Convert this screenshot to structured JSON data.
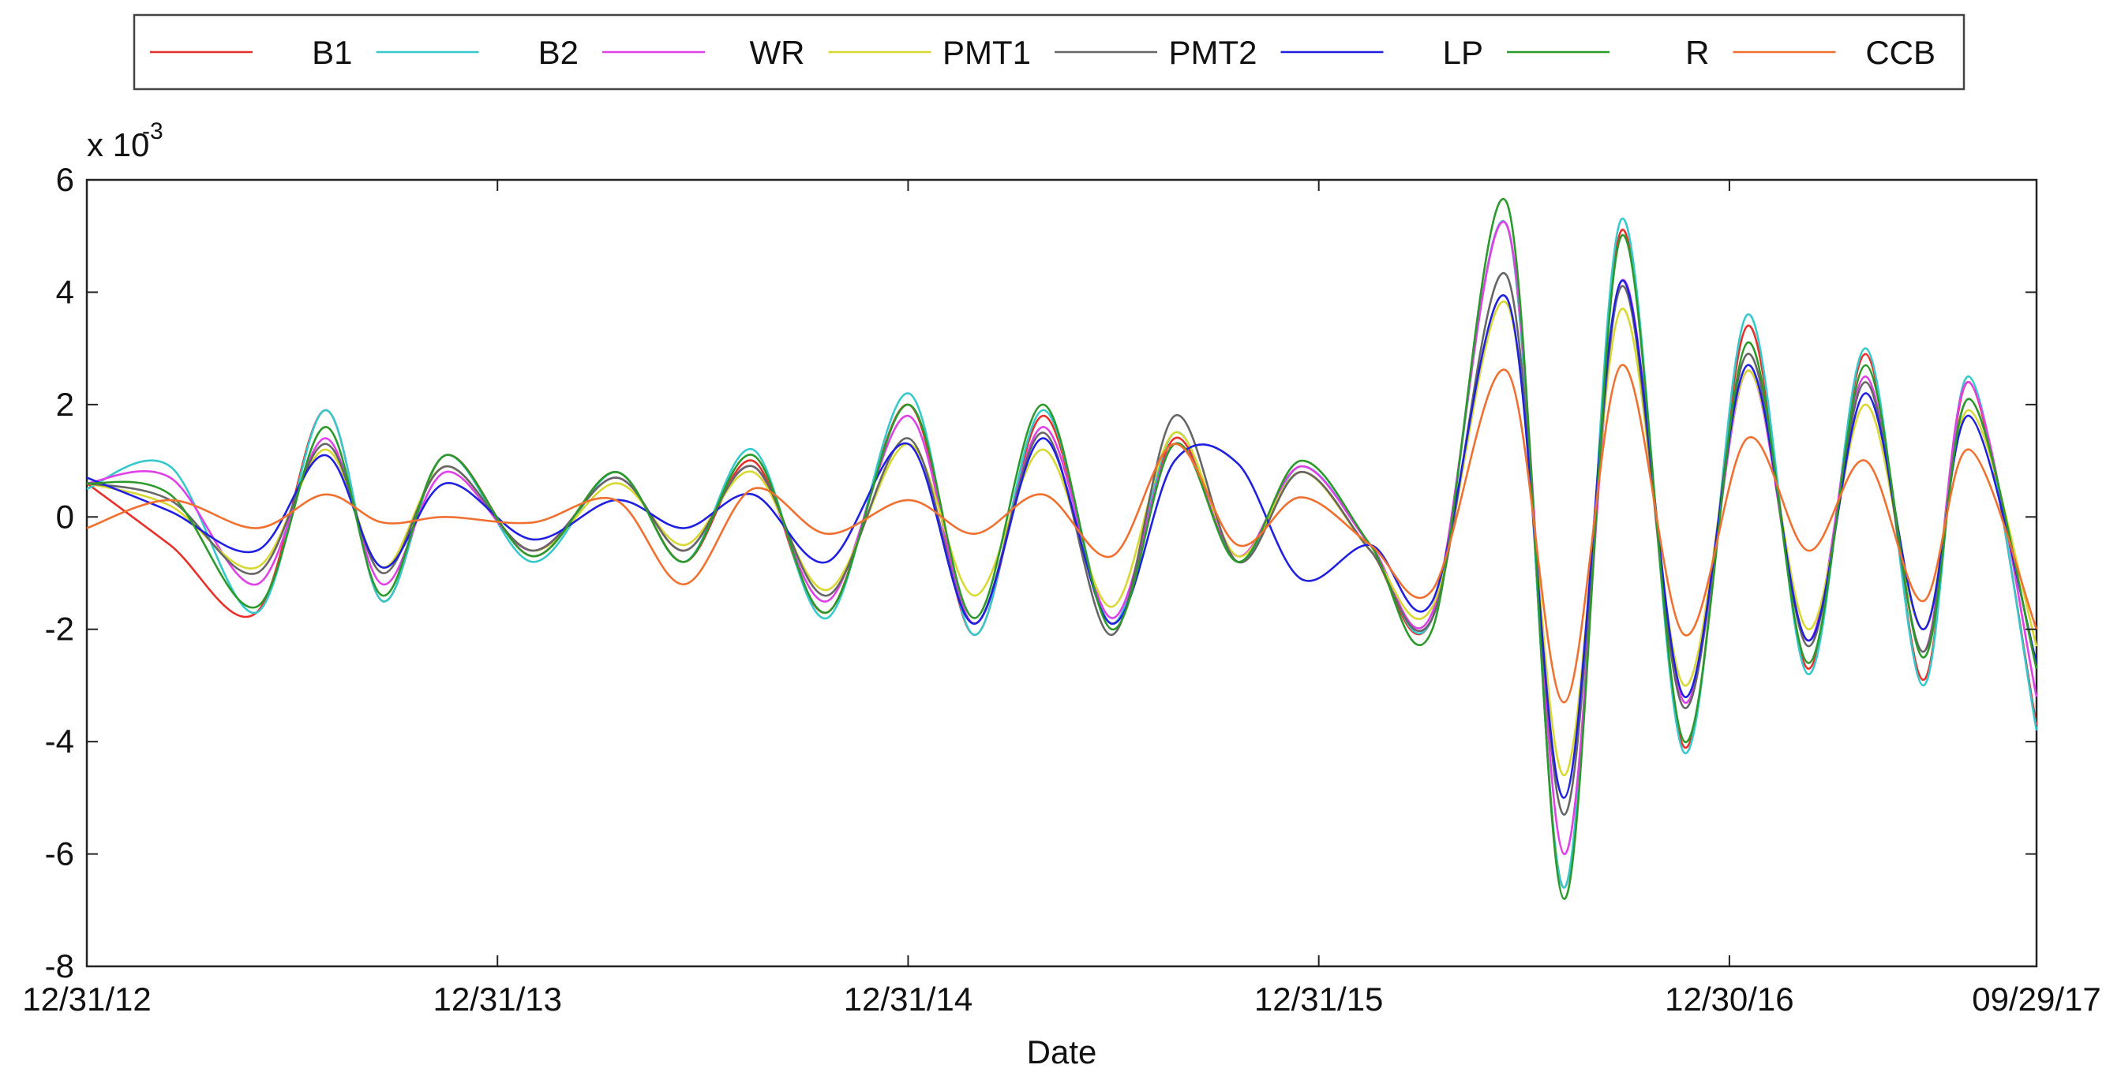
{
  "chart_data": {
    "type": "line",
    "xlabel": "Date",
    "ylabel": "",
    "y_exponent_label": "x 10",
    "y_exponent_power": "-3",
    "x_tick_labels": [
      "12/31/12",
      "12/31/13",
      "12/31/14",
      "12/31/15",
      "12/30/16",
      "09/29/17"
    ],
    "x_ticks": [
      "2012-12-31",
      "2013-12-31",
      "2014-12-31",
      "2015-12-31",
      "2016-12-30",
      "2017-09-29"
    ],
    "xlim": [
      "2012-12-31",
      "2017-09-29"
    ],
    "y_tick_labels": [
      "-8",
      "-6",
      "-4",
      "-2",
      "0",
      "2",
      "4",
      "6"
    ],
    "y_ticks": [
      -8,
      -6,
      -4,
      -2,
      0,
      2,
      4,
      6
    ],
    "ylim": [
      -8,
      6
    ],
    "grid": false,
    "legend_position": "top",
    "series": [
      {
        "name": "B1",
        "color": "#e8302a",
        "x": [
          "2012-12-31",
          "2013-03-15",
          "2013-05-31",
          "2013-07-31",
          "2013-09-20",
          "2013-11-15",
          "2014-01-31",
          "2014-04-15",
          "2014-06-15",
          "2014-08-15",
          "2014-10-20",
          "2014-12-31",
          "2015-02-28",
          "2015-04-30",
          "2015-06-30",
          "2015-08-25",
          "2015-10-20",
          "2015-12-15",
          "2016-02-15",
          "2016-04-10",
          "2016-06-15",
          "2016-08-05",
          "2016-09-25",
          "2016-11-20",
          "2017-01-15",
          "2017-03-10",
          "2017-04-30",
          "2017-06-20",
          "2017-07-31",
          "2017-09-29"
        ],
        "y": [
          0.6,
          -0.5,
          -1.7,
          1.9,
          -1.5,
          1.1,
          -0.7,
          0.8,
          -0.8,
          1.0,
          -1.7,
          2.0,
          -2.1,
          1.8,
          -1.9,
          1.4,
          -0.8,
          0.8,
          -0.6,
          -1.8,
          5.2,
          -6.6,
          5.1,
          -4.1,
          3.4,
          -2.7,
          2.9,
          -2.9,
          2.4,
          -3.7
        ]
      },
      {
        "name": "B2",
        "color": "#35c8cc",
        "x": [
          "2012-12-31",
          "2013-03-15",
          "2013-05-31",
          "2013-07-31",
          "2013-09-20",
          "2013-11-15",
          "2014-01-31",
          "2014-04-15",
          "2014-06-15",
          "2014-08-15",
          "2014-10-20",
          "2014-12-31",
          "2015-02-28",
          "2015-04-30",
          "2015-06-30",
          "2015-08-25",
          "2015-10-20",
          "2015-12-15",
          "2016-02-15",
          "2016-04-10",
          "2016-06-15",
          "2016-08-05",
          "2016-09-25",
          "2016-11-20",
          "2017-01-15",
          "2017-03-10",
          "2017-04-30",
          "2017-06-20",
          "2017-07-31",
          "2017-09-29"
        ],
        "y": [
          0.5,
          0.9,
          -1.7,
          1.9,
          -1.5,
          1.1,
          -0.8,
          0.8,
          -0.8,
          1.2,
          -1.8,
          2.2,
          -2.1,
          1.9,
          -1.9,
          1.5,
          -0.8,
          0.9,
          -0.5,
          -1.8,
          5.2,
          -6.6,
          5.3,
          -4.2,
          3.6,
          -2.8,
          3.0,
          -3.0,
          2.5,
          -3.8
        ]
      },
      {
        "name": "WR",
        "color": "#e040e8",
        "x": [
          "2012-12-31",
          "2013-03-15",
          "2013-05-31",
          "2013-07-31",
          "2013-09-20",
          "2013-11-15",
          "2014-01-31",
          "2014-04-15",
          "2014-06-15",
          "2014-08-15",
          "2014-10-20",
          "2014-12-31",
          "2015-02-28",
          "2015-04-30",
          "2015-06-30",
          "2015-08-25",
          "2015-10-20",
          "2015-12-15",
          "2016-02-15",
          "2016-04-10",
          "2016-06-15",
          "2016-08-05",
          "2016-09-25",
          "2016-11-20",
          "2017-01-15",
          "2017-03-10",
          "2017-04-30",
          "2017-06-20",
          "2017-07-31",
          "2017-09-29"
        ],
        "y": [
          0.6,
          0.7,
          -1.2,
          1.4,
          -1.2,
          0.8,
          -0.6,
          0.7,
          -0.6,
          0.9,
          -1.5,
          1.8,
          -1.9,
          1.6,
          -1.8,
          1.3,
          -0.7,
          0.9,
          -0.5,
          -1.7,
          5.2,
          -6.0,
          4.2,
          -3.3,
          2.6,
          -2.2,
          2.5,
          -2.4,
          2.4,
          -3.2
        ]
      },
      {
        "name": "PMT1",
        "color": "#d8d830",
        "x": [
          "2012-12-31",
          "2013-03-15",
          "2013-05-31",
          "2013-07-31",
          "2013-09-20",
          "2013-11-15",
          "2014-01-31",
          "2014-04-15",
          "2014-06-15",
          "2014-08-15",
          "2014-10-20",
          "2014-12-31",
          "2015-02-28",
          "2015-04-30",
          "2015-06-30",
          "2015-08-25",
          "2015-10-20",
          "2015-12-15",
          "2016-02-15",
          "2016-04-10",
          "2016-06-15",
          "2016-08-05",
          "2016-09-25",
          "2016-11-20",
          "2017-01-15",
          "2017-03-10",
          "2017-04-30",
          "2017-06-20",
          "2017-07-31",
          "2017-09-29"
        ],
        "y": [
          0.6,
          0.2,
          -0.9,
          1.2,
          -0.9,
          0.9,
          -0.6,
          0.6,
          -0.5,
          0.8,
          -1.3,
          1.3,
          -1.4,
          1.2,
          -1.6,
          1.5,
          -0.7,
          0.8,
          -0.6,
          -1.6,
          3.8,
          -4.6,
          3.7,
          -3.0,
          2.6,
          -2.0,
          2.0,
          -2.0,
          1.9,
          -2.3
        ]
      },
      {
        "name": "PMT2",
        "color": "#666666",
        "x": [
          "2012-12-31",
          "2013-03-15",
          "2013-05-31",
          "2013-07-31",
          "2013-09-20",
          "2013-11-15",
          "2014-01-31",
          "2014-04-15",
          "2014-06-15",
          "2014-08-15",
          "2014-10-20",
          "2014-12-31",
          "2015-02-28",
          "2015-04-30",
          "2015-06-30",
          "2015-08-25",
          "2015-10-20",
          "2015-12-15",
          "2016-02-15",
          "2016-04-10",
          "2016-06-15",
          "2016-08-05",
          "2016-09-25",
          "2016-11-20",
          "2017-01-15",
          "2017-03-10",
          "2017-04-30",
          "2017-06-20",
          "2017-07-31",
          "2017-09-29"
        ],
        "y": [
          0.6,
          0.3,
          -1.0,
          1.3,
          -1.0,
          0.9,
          -0.6,
          0.7,
          -0.6,
          0.9,
          -1.4,
          1.4,
          -1.9,
          1.5,
          -2.1,
          1.8,
          -0.8,
          0.8,
          -0.6,
          -1.8,
          4.3,
          -5.3,
          4.1,
          -3.4,
          2.9,
          -2.3,
          2.4,
          -2.4,
          2.1,
          -2.7
        ]
      },
      {
        "name": "LP",
        "color": "#2020e0",
        "x": [
          "2012-12-31",
          "2013-03-15",
          "2013-05-31",
          "2013-07-31",
          "2013-09-20",
          "2013-11-15",
          "2014-01-31",
          "2014-04-15",
          "2014-06-15",
          "2014-08-15",
          "2014-10-20",
          "2014-12-31",
          "2015-02-28",
          "2015-04-30",
          "2015-06-30",
          "2015-08-25",
          "2015-10-20",
          "2015-12-15",
          "2016-02-15",
          "2016-04-10",
          "2016-06-15",
          "2016-08-05",
          "2016-09-25",
          "2016-11-20",
          "2017-01-15",
          "2017-03-10",
          "2017-04-30",
          "2017-06-20",
          "2017-07-31",
          "2017-09-29"
        ],
        "y": [
          0.7,
          0.1,
          -0.6,
          1.1,
          -0.9,
          0.6,
          -0.4,
          0.3,
          -0.2,
          0.4,
          -0.8,
          1.3,
          -1.9,
          1.4,
          -1.9,
          1.0,
          0.95,
          -1.1,
          -0.5,
          -1.5,
          3.9,
          -5.0,
          4.2,
          -3.2,
          2.7,
          -2.2,
          2.2,
          -2.0,
          1.8,
          -2.6
        ]
      },
      {
        "name": "R",
        "color": "#2a9a2a",
        "x": [
          "2012-12-31",
          "2013-03-15",
          "2013-05-31",
          "2013-07-31",
          "2013-09-20",
          "2013-11-15",
          "2014-01-31",
          "2014-04-15",
          "2014-06-15",
          "2014-08-15",
          "2014-10-20",
          "2014-12-31",
          "2015-02-28",
          "2015-04-30",
          "2015-06-30",
          "2015-08-25",
          "2015-10-20",
          "2015-12-15",
          "2016-02-15",
          "2016-04-10",
          "2016-06-15",
          "2016-08-05",
          "2016-09-25",
          "2016-11-20",
          "2017-01-15",
          "2017-03-10",
          "2017-04-30",
          "2017-06-20",
          "2017-07-31",
          "2017-09-29"
        ],
        "y": [
          0.6,
          0.4,
          -1.6,
          1.6,
          -1.4,
          1.1,
          -0.7,
          0.8,
          -0.8,
          1.1,
          -1.7,
          2.0,
          -1.8,
          2.0,
          -2.0,
          1.3,
          -0.8,
          1.0,
          -0.5,
          -2.0,
          5.6,
          -6.8,
          5.0,
          -4.0,
          3.1,
          -2.6,
          2.7,
          -2.5,
          2.1,
          -2.7
        ]
      },
      {
        "name": "CCB",
        "color": "#f07030",
        "x": [
          "2012-12-31",
          "2013-03-15",
          "2013-05-31",
          "2013-07-31",
          "2013-09-20",
          "2013-11-15",
          "2014-01-31",
          "2014-04-15",
          "2014-06-15",
          "2014-08-15",
          "2014-10-20",
          "2014-12-31",
          "2015-02-28",
          "2015-04-30",
          "2015-06-30",
          "2015-08-25",
          "2015-10-20",
          "2015-12-15",
          "2016-02-15",
          "2016-04-10",
          "2016-06-15",
          "2016-08-05",
          "2016-09-25",
          "2016-11-20",
          "2017-01-15",
          "2017-03-10",
          "2017-04-30",
          "2017-06-20",
          "2017-07-31",
          "2017-09-29"
        ],
        "y": [
          -0.2,
          0.3,
          -0.2,
          0.4,
          -0.1,
          0.0,
          -0.1,
          0.3,
          -1.2,
          0.5,
          -0.3,
          0.3,
          -0.3,
          0.4,
          -0.7,
          1.3,
          -0.5,
          0.35,
          -0.5,
          -1.3,
          2.6,
          -3.3,
          2.7,
          -2.1,
          1.4,
          -0.6,
          1.0,
          -1.5,
          1.2,
          -2.0
        ]
      }
    ]
  }
}
